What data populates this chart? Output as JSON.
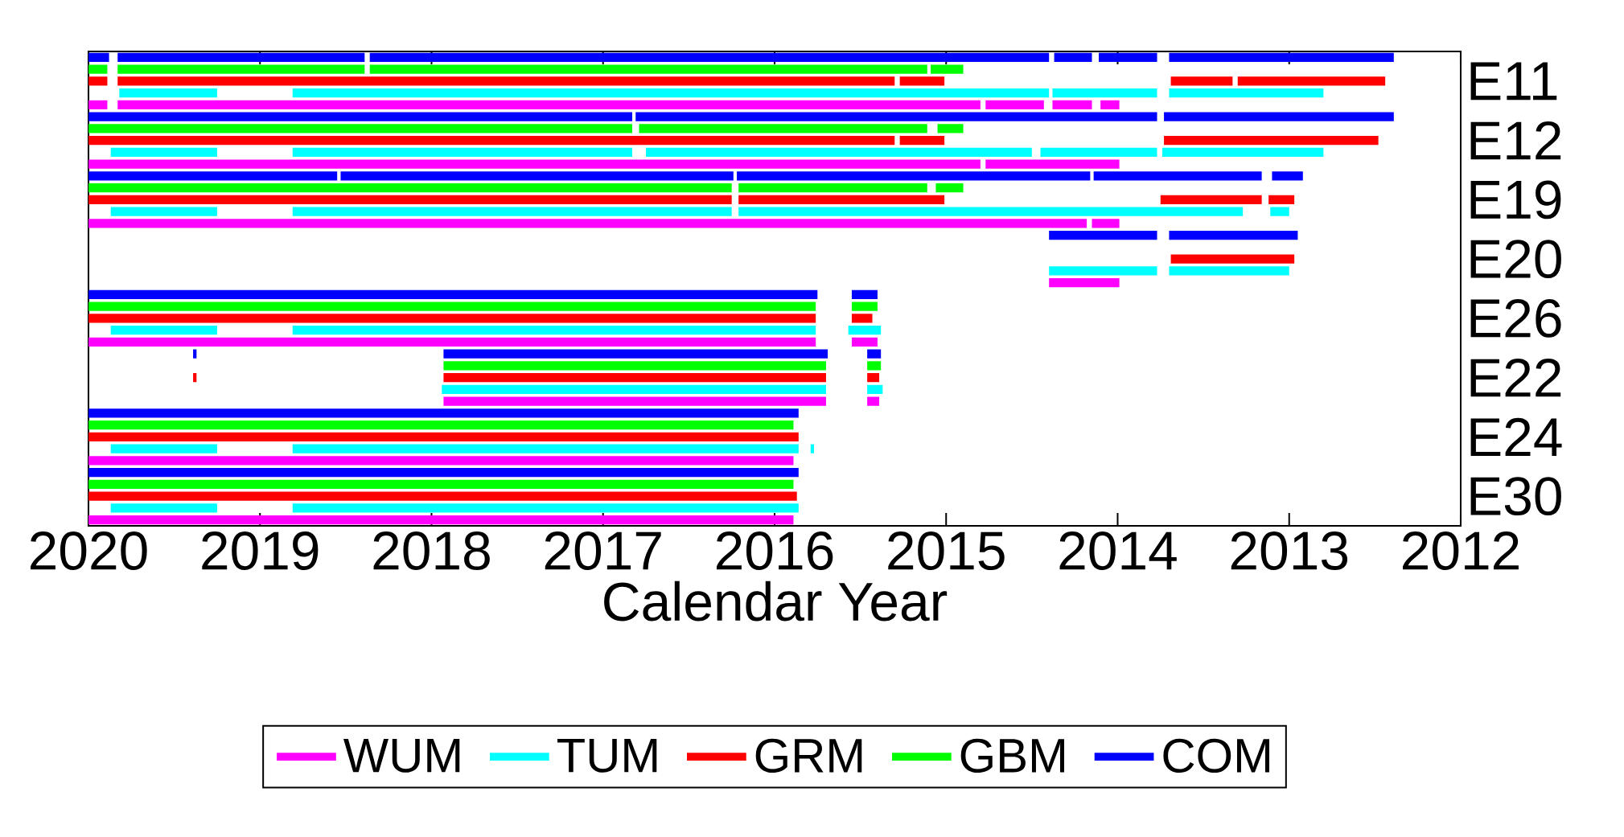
{
  "chart_data": {
    "type": "bar",
    "orientation": "horizontal",
    "xlabel": "Calendar Year",
    "xlim": [
      2020,
      2012
    ],
    "xticks": [
      2012,
      2013,
      2014,
      2015,
      2016,
      2017,
      2018,
      2019,
      2020
    ],
    "legend": "bottom",
    "categories": [
      null,
      null,
      "E11",
      null,
      null,
      null,
      null,
      "E12",
      null,
      null,
      null,
      null,
      "E19",
      null,
      null,
      null,
      null,
      "E20",
      null,
      null,
      null,
      null,
      "E26",
      null,
      null,
      null,
      null,
      "E22",
      null,
      null,
      null,
      null,
      "E24",
      null,
      null,
      null,
      null,
      "E30",
      null,
      null
    ],
    "series": [
      {
        "name": "COM",
        "color": "#0000ff",
        "base": [
          2019.88,
          null,
          null,
          null,
          null,
          2016.83,
          null,
          null,
          null,
          null,
          2018.55,
          null,
          null,
          null,
          null,
          2013.77,
          null,
          null,
          null,
          null,
          2015.75,
          null,
          null,
          null,
          null,
          2019.37,
          null,
          null,
          null,
          null,
          2015.86,
          null,
          null,
          null,
          null,
          2015.86,
          null,
          null,
          null,
          null
        ],
        "values": [
          0.12,
          null,
          null,
          null,
          null,
          3.17,
          null,
          null,
          null,
          null,
          1.45,
          null,
          null,
          null,
          null,
          0.63,
          null,
          null,
          null,
          null,
          4.25,
          null,
          null,
          null,
          null,
          0.02,
          null,
          null,
          null,
          null,
          4.14,
          null,
          null,
          null,
          null,
          4.14,
          null,
          null,
          null,
          null
        ]
      },
      {
        "color": "#0000ff",
        "base": [
          2018.39,
          null,
          null,
          null,
          null,
          2013.77,
          null,
          null,
          null,
          null,
          2016.24,
          null,
          null,
          null,
          null,
          2012.95,
          null,
          null,
          null,
          null,
          2015.4,
          null,
          null,
          null,
          null,
          2015.69,
          null,
          null,
          null,
          null,
          null,
          null,
          null,
          null,
          null,
          null,
          null,
          null,
          null,
          null
        ],
        "values": [
          1.44,
          null,
          null,
          null,
          null,
          3.04,
          null,
          null,
          null,
          null,
          2.29,
          null,
          null,
          null,
          null,
          0.75,
          null,
          null,
          null,
          null,
          0.15,
          null,
          null,
          null,
          null,
          2.24,
          null,
          null,
          null,
          null,
          null,
          null,
          null,
          null,
          null,
          null,
          null,
          null,
          null,
          null
        ]
      },
      {
        "color": "#0000ff",
        "base": [
          2014.4,
          null,
          null,
          null,
          null,
          2012.39,
          null,
          null,
          null,
          null,
          2014.16,
          null,
          null,
          null,
          null,
          null,
          null,
          null,
          null,
          null,
          null,
          null,
          null,
          null,
          null,
          2015.38,
          null,
          null,
          null,
          null,
          null,
          null,
          null,
          null,
          null,
          null,
          null,
          null,
          null,
          null
        ],
        "values": [
          3.96,
          null,
          null,
          null,
          null,
          1.34,
          null,
          null,
          null,
          null,
          2.06,
          null,
          null,
          null,
          null,
          null,
          null,
          null,
          null,
          null,
          null,
          null,
          null,
          null,
          null,
          0.08,
          null,
          null,
          null,
          null,
          null,
          null,
          null,
          null,
          null,
          null,
          null,
          null,
          null,
          null
        ]
      },
      {
        "color": "#0000ff",
        "base": [
          2014.15,
          null,
          null,
          null,
          null,
          null,
          null,
          null,
          null,
          null,
          2013.16,
          null,
          null,
          null,
          null,
          null,
          null,
          null,
          null,
          null,
          null,
          null,
          null,
          null,
          null,
          null,
          null,
          null,
          null,
          null,
          null,
          null,
          null,
          null,
          null,
          null,
          null,
          null,
          null,
          null
        ],
        "values": [
          0.22,
          null,
          null,
          null,
          null,
          null,
          null,
          null,
          null,
          null,
          0.98,
          null,
          null,
          null,
          null,
          null,
          null,
          null,
          null,
          null,
          null,
          null,
          null,
          null,
          null,
          null,
          null,
          null,
          null,
          null,
          null,
          null,
          null,
          null,
          null,
          null,
          null,
          null,
          null,
          null
        ]
      },
      {
        "color": "#0000ff",
        "base": [
          2013.77,
          null,
          null,
          null,
          null,
          null,
          null,
          null,
          null,
          null,
          2012.92,
          null,
          null,
          null,
          null,
          null,
          null,
          null,
          null,
          null,
          null,
          null,
          null,
          null,
          null,
          null,
          null,
          null,
          null,
          null,
          null,
          null,
          null,
          null,
          null,
          null,
          null,
          null,
          null,
          null
        ],
        "values": [
          0.34,
          null,
          null,
          null,
          null,
          null,
          null,
          null,
          null,
          null,
          0.18,
          null,
          null,
          null,
          null,
          null,
          null,
          null,
          null,
          null,
          null,
          null,
          null,
          null,
          null,
          null,
          null,
          null,
          null,
          null,
          null,
          null,
          null,
          null,
          null,
          null,
          null,
          null,
          null,
          null
        ]
      },
      {
        "color": "#0000ff",
        "base": [
          2012.39,
          null,
          null,
          null,
          null,
          null,
          null,
          null,
          null,
          null,
          null,
          null,
          null,
          null,
          null,
          null,
          null,
          null,
          null,
          null,
          null,
          null,
          null,
          null,
          null,
          null,
          null,
          null,
          null,
          null,
          null,
          null,
          null,
          null,
          null,
          null,
          null,
          null,
          null,
          null
        ],
        "values": [
          1.31,
          null,
          null,
          null,
          null,
          null,
          null,
          null,
          null,
          null,
          null,
          null,
          null,
          null,
          null,
          null,
          null,
          null,
          null,
          null,
          null,
          null,
          null,
          null,
          null,
          null,
          null,
          null,
          null,
          null,
          null,
          null,
          null,
          null,
          null,
          null,
          null,
          null,
          null,
          null
        ]
      },
      {
        "name": "GBM",
        "color": "#00ff00",
        "base": [
          null,
          2019.89,
          null,
          null,
          null,
          null,
          2016.83,
          null,
          null,
          null,
          null,
          2016.25,
          null,
          null,
          null,
          null,
          null,
          null,
          null,
          null,
          null,
          2015.76,
          null,
          null,
          null,
          null,
          2015.7,
          null,
          null,
          null,
          null,
          2015.89,
          null,
          null,
          null,
          null,
          2015.89,
          null,
          null,
          null
        ],
        "values": [
          null,
          0.11,
          null,
          null,
          null,
          null,
          3.17,
          null,
          null,
          null,
          null,
          3.75,
          null,
          null,
          null,
          null,
          null,
          null,
          null,
          null,
          null,
          4.24,
          null,
          null,
          null,
          null,
          2.23,
          null,
          null,
          null,
          null,
          4.11,
          null,
          null,
          null,
          null,
          4.11,
          null,
          null,
          null
        ]
      },
      {
        "color": "#00ff00",
        "base": [
          null,
          2018.39,
          null,
          null,
          null,
          null,
          2015.11,
          null,
          null,
          null,
          null,
          2015.11,
          null,
          null,
          null,
          null,
          null,
          null,
          null,
          null,
          null,
          2015.4,
          null,
          null,
          null,
          null,
          2015.38,
          null,
          null,
          null,
          null,
          null,
          null,
          null,
          null,
          null,
          null,
          null,
          null,
          null
        ],
        "values": [
          null,
          1.44,
          null,
          null,
          null,
          null,
          1.68,
          null,
          null,
          null,
          null,
          1.1,
          null,
          null,
          null,
          null,
          null,
          null,
          null,
          null,
          null,
          0.15,
          null,
          null,
          null,
          null,
          0.08,
          null,
          null,
          null,
          null,
          null,
          null,
          null,
          null,
          null,
          null,
          null,
          null,
          null
        ]
      },
      {
        "color": "#00ff00",
        "base": [
          null,
          2015.11,
          null,
          null,
          null,
          null,
          2014.9,
          null,
          null,
          null,
          null,
          2014.9,
          null,
          null,
          null,
          null,
          null,
          null,
          null,
          null,
          null,
          null,
          null,
          null,
          null,
          null,
          null,
          null,
          null,
          null,
          null,
          null,
          null,
          null,
          null,
          null,
          null,
          null,
          null,
          null
        ],
        "values": [
          null,
          3.25,
          null,
          null,
          null,
          null,
          0.15,
          null,
          null,
          null,
          null,
          0.16,
          null,
          null,
          null,
          null,
          null,
          null,
          null,
          null,
          null,
          null,
          null,
          null,
          null,
          null,
          null,
          null,
          null,
          null,
          null,
          null,
          null,
          null,
          null,
          null,
          null,
          null,
          null,
          null
        ]
      },
      {
        "color": "#00ff00",
        "base": [
          null,
          2014.9,
          null,
          null,
          null,
          null,
          null,
          null,
          null,
          null,
          null,
          null,
          null,
          null,
          null,
          null,
          null,
          null,
          null,
          null,
          null,
          null,
          null,
          null,
          null,
          null,
          null,
          null,
          null,
          null,
          null,
          null,
          null,
          null,
          null,
          null,
          null,
          null,
          null,
          null
        ],
        "values": [
          null,
          0.19,
          null,
          null,
          null,
          null,
          null,
          null,
          null,
          null,
          null,
          null,
          null,
          null,
          null,
          null,
          null,
          null,
          null,
          null,
          null,
          null,
          null,
          null,
          null,
          null,
          null,
          null,
          null,
          null,
          null,
          null,
          null,
          null,
          null,
          null,
          null,
          null,
          null,
          null
        ]
      },
      {
        "name": "GRM",
        "color": "#ff0000",
        "base": [
          null,
          null,
          2019.89,
          null,
          null,
          null,
          null,
          2015.3,
          null,
          null,
          null,
          null,
          2016.25,
          null,
          null,
          null,
          null,
          2012.97,
          null,
          null,
          null,
          null,
          2015.76,
          null,
          null,
          null,
          null,
          2019.37,
          null,
          null,
          null,
          null,
          2015.86,
          null,
          null,
          null,
          null,
          2015.87,
          null,
          null
        ],
        "values": [
          null,
          null,
          0.11,
          null,
          null,
          null,
          null,
          4.7,
          null,
          null,
          null,
          null,
          3.75,
          null,
          null,
          null,
          null,
          0.72,
          null,
          null,
          null,
          null,
          4.24,
          null,
          null,
          null,
          null,
          0.02,
          null,
          null,
          null,
          null,
          4.14,
          null,
          null,
          null,
          null,
          4.13,
          null,
          null
        ]
      },
      {
        "color": "#ff0000",
        "base": [
          null,
          null,
          2015.3,
          null,
          null,
          null,
          null,
          2015.01,
          null,
          null,
          null,
          null,
          2015.01,
          null,
          null,
          null,
          null,
          null,
          null,
          null,
          null,
          null,
          2015.43,
          null,
          null,
          null,
          null,
          2015.7,
          null,
          null,
          null,
          null,
          null,
          null,
          null,
          null,
          null,
          null,
          null,
          null
        ],
        "values": [
          null,
          null,
          4.53,
          null,
          null,
          null,
          null,
          0.26,
          null,
          null,
          null,
          null,
          1.2,
          null,
          null,
          null,
          null,
          null,
          null,
          null,
          null,
          null,
          0.12,
          null,
          null,
          null,
          null,
          2.23,
          null,
          null,
          null,
          null,
          null,
          null,
          null,
          null,
          null,
          null,
          null,
          null
        ]
      },
      {
        "color": "#ff0000",
        "base": [
          null,
          null,
          2015.01,
          null,
          null,
          null,
          null,
          2012.48,
          null,
          null,
          null,
          null,
          2013.16,
          null,
          null,
          null,
          null,
          null,
          null,
          null,
          null,
          null,
          null,
          null,
          null,
          null,
          null,
          2015.39,
          null,
          null,
          null,
          null,
          null,
          null,
          null,
          null,
          null,
          null,
          null,
          null
        ],
        "values": [
          null,
          null,
          0.26,
          null,
          null,
          null,
          null,
          1.25,
          null,
          null,
          null,
          null,
          0.59,
          null,
          null,
          null,
          null,
          null,
          null,
          null,
          null,
          null,
          null,
          null,
          null,
          null,
          null,
          0.07,
          null,
          null,
          null,
          null,
          null,
          null,
          null,
          null,
          null,
          null,
          null,
          null
        ]
      },
      {
        "color": "#ff0000",
        "base": [
          null,
          null,
          2013.33,
          null,
          null,
          null,
          null,
          null,
          null,
          null,
          null,
          null,
          2012.97,
          null,
          null,
          null,
          null,
          null,
          null,
          null,
          null,
          null,
          null,
          null,
          null,
          null,
          null,
          null,
          null,
          null,
          null,
          null,
          null,
          null,
          null,
          null,
          null,
          null,
          null,
          null
        ],
        "values": [
          null,
          null,
          0.36,
          null,
          null,
          null,
          null,
          null,
          null,
          null,
          null,
          null,
          0.15,
          null,
          null,
          null,
          null,
          null,
          null,
          null,
          null,
          null,
          null,
          null,
          null,
          null,
          null,
          null,
          null,
          null,
          null,
          null,
          null,
          null,
          null,
          null,
          null,
          null,
          null,
          null
        ]
      },
      {
        "color": "#ff0000",
        "base": [
          null,
          null,
          2012.44,
          null,
          null,
          null,
          null,
          null,
          null,
          null,
          null,
          null,
          null,
          null,
          null,
          null,
          null,
          null,
          null,
          null,
          null,
          null,
          null,
          null,
          null,
          null,
          null,
          null,
          null,
          null,
          null,
          null,
          null,
          null,
          null,
          null,
          null,
          null,
          null,
          null
        ],
        "values": [
          null,
          null,
          0.86,
          null,
          null,
          null,
          null,
          null,
          null,
          null,
          null,
          null,
          null,
          null,
          null,
          null,
          null,
          null,
          null,
          null,
          null,
          null,
          null,
          null,
          null,
          null,
          null,
          null,
          null,
          null,
          null,
          null,
          null,
          null,
          null,
          null,
          null,
          null,
          null,
          null
        ]
      },
      {
        "name": "TUM",
        "color": "#00ffff",
        "base": [
          null,
          null,
          null,
          2019.25,
          null,
          null,
          null,
          null,
          2019.25,
          null,
          null,
          null,
          null,
          2019.25,
          null,
          null,
          null,
          null,
          2013.77,
          null,
          null,
          null,
          null,
          2019.25,
          null,
          null,
          null,
          null,
          2015.7,
          null,
          null,
          null,
          null,
          2019.25,
          null,
          null,
          null,
          null,
          2019.25,
          null
        ],
        "values": [
          null,
          null,
          null,
          0.57,
          null,
          null,
          null,
          null,
          0.62,
          null,
          null,
          null,
          null,
          0.62,
          null,
          null,
          null,
          null,
          0.63,
          null,
          null,
          null,
          null,
          0.62,
          null,
          null,
          null,
          null,
          2.24,
          null,
          null,
          null,
          null,
          0.62,
          null,
          null,
          null,
          null,
          0.62,
          null
        ]
      },
      {
        "color": "#00ffff",
        "base": [
          null,
          null,
          null,
          2014.4,
          null,
          null,
          null,
          null,
          2016.83,
          null,
          null,
          null,
          null,
          2016.25,
          null,
          null,
          null,
          null,
          2013.0,
          null,
          null,
          null,
          null,
          2015.76,
          null,
          null,
          null,
          null,
          2015.37,
          null,
          null,
          null,
          null,
          2015.86,
          null,
          null,
          null,
          null,
          2015.86,
          null
        ],
        "values": [
          null,
          null,
          null,
          4.41,
          null,
          null,
          null,
          null,
          1.98,
          null,
          null,
          null,
          null,
          2.56,
          null,
          null,
          null,
          null,
          0.7,
          null,
          null,
          null,
          null,
          3.05,
          null,
          null,
          null,
          null,
          0.09,
          null,
          null,
          null,
          null,
          2.95,
          null,
          null,
          null,
          null,
          2.95,
          null
        ]
      },
      {
        "color": "#00ffff",
        "base": [
          null,
          null,
          null,
          2013.77,
          null,
          null,
          null,
          null,
          2014.5,
          null,
          null,
          null,
          null,
          2013.27,
          null,
          null,
          null,
          null,
          null,
          null,
          null,
          null,
          null,
          2015.38,
          null,
          null,
          null,
          null,
          null,
          null,
          null,
          null,
          null,
          2015.77,
          null,
          null,
          null,
          null,
          null,
          null
        ],
        "values": [
          null,
          null,
          null,
          0.61,
          null,
          null,
          null,
          null,
          2.25,
          null,
          null,
          null,
          null,
          2.94,
          null,
          null,
          null,
          null,
          null,
          null,
          null,
          null,
          null,
          0.19,
          null,
          null,
          null,
          null,
          null,
          null,
          null,
          null,
          null,
          0.02,
          null,
          null,
          null,
          null,
          null,
          null
        ]
      },
      {
        "color": "#00ffff",
        "base": [
          null,
          null,
          null,
          2012.8,
          null,
          null,
          null,
          null,
          2013.77,
          null,
          null,
          null,
          null,
          2013.0,
          null,
          null,
          null,
          null,
          null,
          null,
          null,
          null,
          null,
          null,
          null,
          null,
          null,
          null,
          null,
          null,
          null,
          null,
          null,
          null,
          null,
          null,
          null,
          null,
          null,
          null
        ],
        "values": [
          null,
          null,
          null,
          0.9,
          null,
          null,
          null,
          null,
          0.68,
          null,
          null,
          null,
          null,
          0.11,
          null,
          null,
          null,
          null,
          null,
          null,
          null,
          null,
          null,
          null,
          null,
          null,
          null,
          null,
          null,
          null,
          null,
          null,
          null,
          null,
          null,
          null,
          null,
          null,
          null,
          null
        ]
      },
      {
        "color": "#00ffff",
        "base": [
          null,
          null,
          null,
          null,
          null,
          null,
          null,
          null,
          2012.8,
          null,
          null,
          null,
          null,
          null,
          null,
          null,
          null,
          null,
          null,
          null,
          null,
          null,
          null,
          null,
          null,
          null,
          null,
          null,
          null,
          null,
          null,
          null,
          null,
          null,
          null,
          null,
          null,
          null,
          null,
          null
        ],
        "values": [
          null,
          null,
          null,
          null,
          null,
          null,
          null,
          null,
          0.94,
          null,
          null,
          null,
          null,
          null,
          null,
          null,
          null,
          null,
          null,
          null,
          null,
          null,
          null,
          null,
          null,
          null,
          null,
          null,
          null,
          null,
          null,
          null,
          null,
          null,
          null,
          null,
          null,
          null,
          null,
          null
        ]
      },
      {
        "name": "WUM",
        "color": "#ff00ff",
        "base": [
          null,
          null,
          null,
          null,
          2019.89,
          null,
          null,
          null,
          null,
          2014.8,
          null,
          null,
          null,
          null,
          2014.18,
          null,
          null,
          null,
          null,
          2013.99,
          null,
          null,
          null,
          null,
          2015.76,
          null,
          null,
          null,
          null,
          2015.7,
          null,
          null,
          null,
          null,
          2015.89,
          null,
          null,
          null,
          null,
          2015.89
        ],
        "values": [
          null,
          null,
          null,
          null,
          0.11,
          null,
          null,
          null,
          null,
          5.2,
          null,
          null,
          null,
          null,
          5.82,
          null,
          null,
          null,
          null,
          0.41,
          null,
          null,
          null,
          null,
          4.24,
          null,
          null,
          null,
          null,
          2.23,
          null,
          null,
          null,
          null,
          4.11,
          null,
          null,
          null,
          null,
          4.11
        ]
      },
      {
        "color": "#ff00ff",
        "base": [
          null,
          null,
          null,
          null,
          2014.8,
          null,
          null,
          null,
          null,
          2013.99,
          null,
          null,
          null,
          null,
          2013.99,
          null,
          null,
          null,
          null,
          null,
          null,
          null,
          null,
          null,
          2015.4,
          null,
          null,
          null,
          null,
          2015.39,
          null,
          null,
          null,
          null,
          null,
          null,
          null,
          null,
          null,
          null
        ],
        "values": [
          null,
          null,
          null,
          null,
          5.03,
          null,
          null,
          null,
          null,
          0.78,
          null,
          null,
          null,
          null,
          0.16,
          null,
          null,
          null,
          null,
          null,
          null,
          null,
          null,
          null,
          0.15,
          null,
          null,
          null,
          null,
          0.07,
          null,
          null,
          null,
          null,
          null,
          null,
          null,
          null,
          null,
          null
        ]
      },
      {
        "color": "#ff00ff",
        "base": [
          null,
          null,
          null,
          null,
          2014.43,
          null,
          null,
          null,
          null,
          null,
          null,
          null,
          null,
          null,
          null,
          null,
          null,
          null,
          null,
          null,
          null,
          null,
          null,
          null,
          null,
          null,
          null,
          null,
          null,
          null,
          null,
          null,
          null,
          null,
          null,
          null,
          null,
          null,
          null,
          null
        ],
        "values": [
          null,
          null,
          null,
          null,
          0.34,
          null,
          null,
          null,
          null,
          null,
          null,
          null,
          null,
          null,
          null,
          null,
          null,
          null,
          null,
          null,
          null,
          null,
          null,
          null,
          null,
          null,
          null,
          null,
          null,
          null,
          null,
          null,
          null,
          null,
          null,
          null,
          null,
          null,
          null,
          null
        ]
      },
      {
        "color": "#ff00ff",
        "base": [
          null,
          null,
          null,
          null,
          2014.15,
          null,
          null,
          null,
          null,
          null,
          null,
          null,
          null,
          null,
          null,
          null,
          null,
          null,
          null,
          null,
          null,
          null,
          null,
          null,
          null,
          null,
          null,
          null,
          null,
          null,
          null,
          null,
          null,
          null,
          null,
          null,
          null,
          null,
          null,
          null
        ],
        "values": [
          null,
          null,
          null,
          null,
          0.23,
          null,
          null,
          null,
          null,
          null,
          null,
          null,
          null,
          null,
          null,
          null,
          null,
          null,
          null,
          null,
          null,
          null,
          null,
          null,
          null,
          null,
          null,
          null,
          null,
          null,
          null,
          null,
          null,
          null,
          null,
          null,
          null,
          null,
          null,
          null
        ]
      },
      {
        "color": "#ff00ff",
        "base": [
          null,
          null,
          null,
          null,
          2013.99,
          null,
          null,
          null,
          null,
          null,
          null,
          null,
          null,
          null,
          null,
          null,
          null,
          null,
          null,
          null,
          null,
          null,
          null,
          null,
          null,
          null,
          null,
          null,
          null,
          null,
          null,
          null,
          null,
          null,
          null,
          null,
          null,
          null,
          null,
          null
        ],
        "values": [
          null,
          null,
          null,
          null,
          0.11,
          null,
          null,
          null,
          null,
          null,
          null,
          null,
          null,
          null,
          null,
          null,
          null,
          null,
          null,
          null,
          null,
          null,
          null,
          null,
          null,
          null,
          null,
          null,
          null,
          null,
          null,
          null,
          null,
          null,
          null,
          null,
          null,
          null,
          null,
          null
        ]
      }
    ]
  }
}
